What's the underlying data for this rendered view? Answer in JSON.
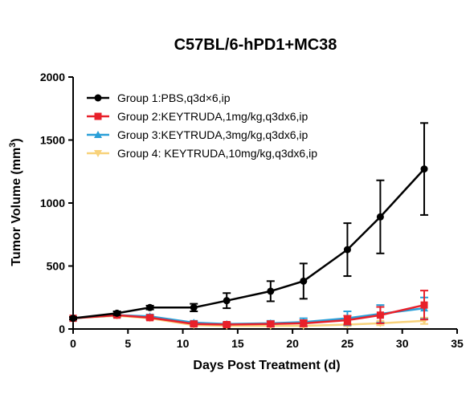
{
  "chart_data": {
    "type": "line",
    "title": "C57BL/6-hPD1+MC38",
    "xlabel": "Days Post Treatment (d)",
    "ylabel_main": "Tumor Volume (mm",
    "ylabel_sup": "3",
    "ylabel_close": ")",
    "xlim": [
      0,
      35
    ],
    "ylim": [
      0,
      2000
    ],
    "x_ticks": [
      0,
      5,
      10,
      15,
      20,
      25,
      30,
      35
    ],
    "y_ticks": [
      0,
      500,
      1000,
      1500,
      2000
    ],
    "x_tick_labels": [
      "0",
      "5",
      "10",
      "15",
      "20",
      "25",
      "30",
      "35"
    ],
    "y_tick_labels": [
      "0",
      "500",
      "1000",
      "1500",
      "2000"
    ],
    "grid": false,
    "legend_position": "top-left",
    "series": [
      {
        "name": "Group 1:PBS,q3d×6,ip",
        "color": "#000000",
        "marker": "circle",
        "x": [
          0,
          4,
          7,
          11,
          14,
          18,
          21,
          25,
          28,
          32
        ],
        "y": [
          85,
          125,
          170,
          170,
          225,
          300,
          380,
          630,
          890,
          1270
        ],
        "err": [
          10,
          15,
          15,
          30,
          60,
          80,
          140,
          210,
          290,
          365
        ]
      },
      {
        "name": "Group 2:KEYTRUDA,1mg/kg,q3dx6,ip",
        "color": "#e8202a",
        "marker": "square",
        "x": [
          0,
          4,
          7,
          11,
          14,
          18,
          21,
          25,
          28,
          32
        ],
        "y": [
          85,
          110,
          90,
          40,
          35,
          40,
          45,
          70,
          110,
          190
        ],
        "err": [
          8,
          12,
          15,
          15,
          15,
          20,
          25,
          35,
          65,
          115
        ]
      },
      {
        "name": "Group 3:KEYTRUDA,3mg/kg,q3dx6,ip",
        "color": "#2a9fd8",
        "marker": "triangle",
        "x": [
          0,
          4,
          7,
          11,
          14,
          18,
          21,
          25,
          28,
          32
        ],
        "y": [
          85,
          110,
          100,
          50,
          40,
          45,
          55,
          85,
          120,
          165
        ],
        "err": [
          8,
          12,
          15,
          15,
          15,
          20,
          30,
          55,
          70,
          85
        ]
      },
      {
        "name": "Group 4: KEYTRUDA,10mg/kg,q3dx6,ip",
        "color": "#f8d27a",
        "marker": "triangle-down",
        "x": [
          0,
          4,
          7,
          11,
          14,
          18,
          21,
          25,
          28,
          32
        ],
        "y": [
          85,
          105,
          85,
          30,
          25,
          25,
          25,
          35,
          45,
          65
        ],
        "err": [
          8,
          10,
          12,
          10,
          8,
          8,
          8,
          12,
          15,
          25
        ]
      }
    ]
  }
}
